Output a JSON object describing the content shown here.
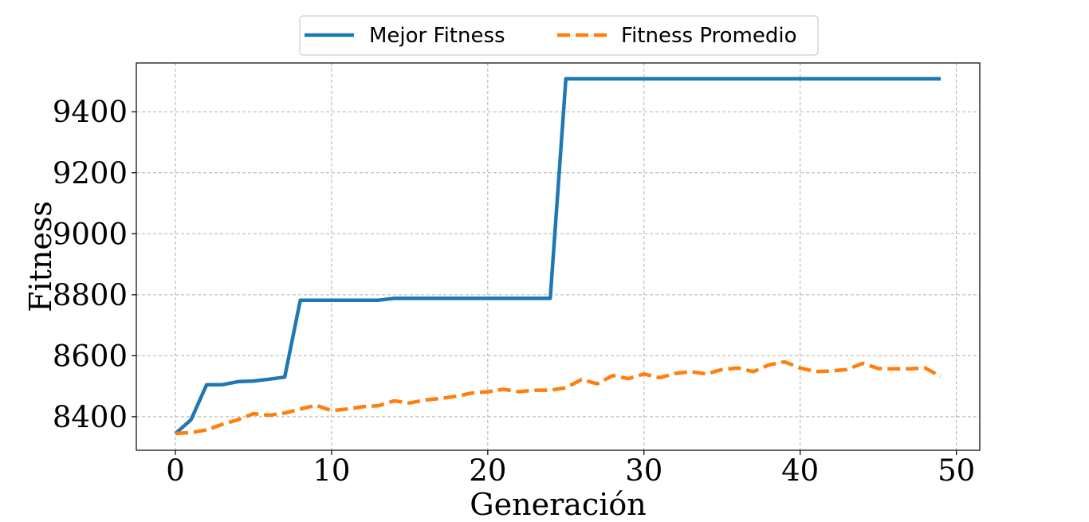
{
  "chart_data": {
    "type": "line",
    "title": "",
    "xlabel": "Generación",
    "ylabel": "Fitness",
    "xlim": [
      -2.5,
      51.5
    ],
    "ylim": [
      8290,
      9560
    ],
    "xticks": [
      0,
      10,
      20,
      30,
      40,
      50
    ],
    "yticks": [
      8400,
      8600,
      8800,
      9000,
      9200,
      9400
    ],
    "grid": true,
    "legend_position": "top-center",
    "series": [
      {
        "name": "Mejor Fitness",
        "color": "#1f77b4",
        "style": "solid",
        "x": [
          0,
          1,
          2,
          3,
          4,
          5,
          6,
          7,
          8,
          9,
          10,
          11,
          12,
          13,
          14,
          15,
          16,
          17,
          18,
          19,
          20,
          21,
          22,
          23,
          24,
          25,
          26,
          27,
          28,
          29,
          30,
          31,
          32,
          33,
          34,
          35,
          36,
          37,
          38,
          39,
          40,
          41,
          42,
          43,
          44,
          45,
          46,
          47,
          48,
          49
        ],
        "values": [
          8345,
          8390,
          8505,
          8505,
          8515,
          8517,
          8523,
          8530,
          8782,
          8782,
          8782,
          8782,
          8782,
          8782,
          8788,
          8788,
          8788,
          8788,
          8788,
          8788,
          8788,
          8788,
          8788,
          8788,
          8788,
          9508,
          9508,
          9508,
          9508,
          9508,
          9508,
          9508,
          9508,
          9508,
          9508,
          9508,
          9508,
          9508,
          9508,
          9508,
          9508,
          9508,
          9508,
          9508,
          9508,
          9508,
          9508,
          9508,
          9508,
          9508
        ]
      },
      {
        "name": "Fitness Promedio",
        "color": "#ff7f0e",
        "style": "dashed",
        "x": [
          0,
          1,
          2,
          3,
          4,
          5,
          6,
          7,
          8,
          9,
          10,
          11,
          12,
          13,
          14,
          15,
          16,
          17,
          18,
          19,
          20,
          21,
          22,
          23,
          24,
          25,
          26,
          27,
          28,
          29,
          30,
          31,
          32,
          33,
          34,
          35,
          36,
          37,
          38,
          39,
          40,
          41,
          42,
          43,
          44,
          45,
          46,
          47,
          48,
          49
        ],
        "values": [
          8345,
          8348,
          8357,
          8375,
          8390,
          8410,
          8405,
          8412,
          8425,
          8438,
          8420,
          8425,
          8433,
          8436,
          8452,
          8445,
          8455,
          8460,
          8467,
          8478,
          8482,
          8490,
          8482,
          8487,
          8487,
          8495,
          8522,
          8508,
          8535,
          8525,
          8540,
          8528,
          8542,
          8548,
          8540,
          8555,
          8560,
          8548,
          8570,
          8580,
          8560,
          8548,
          8550,
          8555,
          8575,
          8558,
          8557,
          8557,
          8560,
          8532
        ]
      }
    ]
  }
}
